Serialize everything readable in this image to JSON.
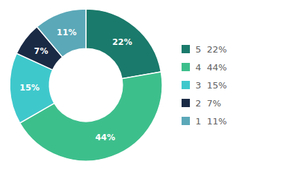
{
  "chart_data": {
    "type": "pie",
    "categories": [
      "5  22%",
      "4  44%",
      "3  15%",
      "2  7%",
      "1  11%"
    ],
    "values": [
      22,
      44,
      15,
      7,
      11
    ],
    "value_labels": [
      "22%",
      "44%",
      "15%",
      "7%",
      "11%"
    ],
    "colors": [
      "#1a7a6b",
      "#3dbf8c",
      "#3fc8cc",
      "#1a2a45",
      "#5ba8b8"
    ],
    "data_labels": true,
    "legend": "right"
  }
}
